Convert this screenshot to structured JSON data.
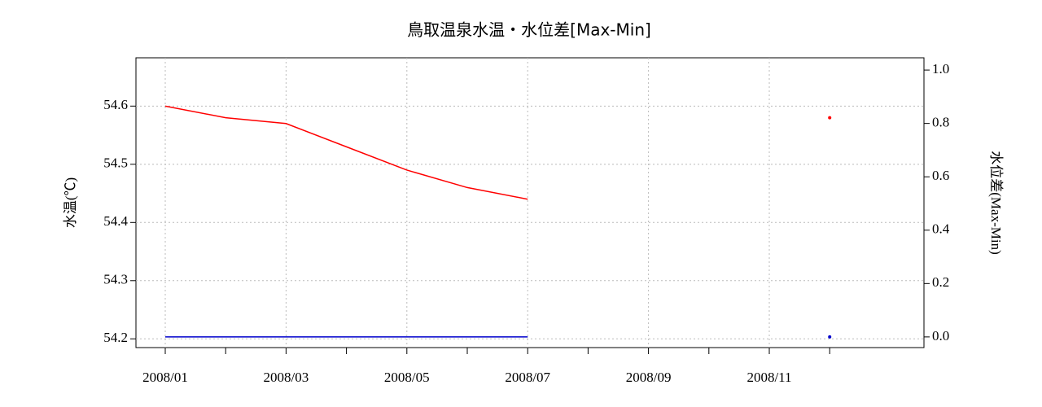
{
  "chart_data": {
    "type": "line",
    "title": "鳥取温泉水温・水位差[Max-Min]",
    "ylabel": "水温(℃)",
    "y2label": "水位差(Max-Min)",
    "x": [
      "2008/01",
      "2008/02",
      "2008/03",
      "2008/04",
      "2008/05",
      "2008/06",
      "2008/07",
      "2008/08",
      "2008/09",
      "2008/10",
      "2008/11",
      "2008/12"
    ],
    "xticks": [
      "2008/01",
      "2008/03",
      "2008/05",
      "2008/07",
      "2008/09",
      "2008/11"
    ],
    "series": [
      {
        "color": "#ff0000",
        "axis": "y",
        "values": [
          54.6,
          54.58,
          54.57,
          54.53,
          54.49,
          54.46,
          54.44,
          null,
          null,
          null,
          null,
          54.58
        ]
      },
      {
        "color": "#0000cc",
        "axis": "y2",
        "values": [
          0.0,
          0.0,
          0.0,
          0.0,
          0.0,
          0.0,
          0.0,
          null,
          null,
          null,
          null,
          0.0
        ]
      }
    ],
    "ylim": [
      54.185,
      54.683
    ],
    "yticks": [
      54.2,
      54.3,
      54.4,
      54.5,
      54.6
    ],
    "y2lim": [
      -0.04,
      1.046
    ],
    "y2ticks": [
      {
        "value": 0,
        "label": "0.0"
      },
      {
        "value": 0.2,
        "label": "0.2"
      },
      {
        "value": 0.4,
        "label": "0.4"
      },
      {
        "value": 0.6,
        "label": "0.6"
      },
      {
        "value": 0.8,
        "label": "0.8"
      },
      {
        "value": 1,
        "label": "1.0"
      }
    ],
    "grid": true
  }
}
